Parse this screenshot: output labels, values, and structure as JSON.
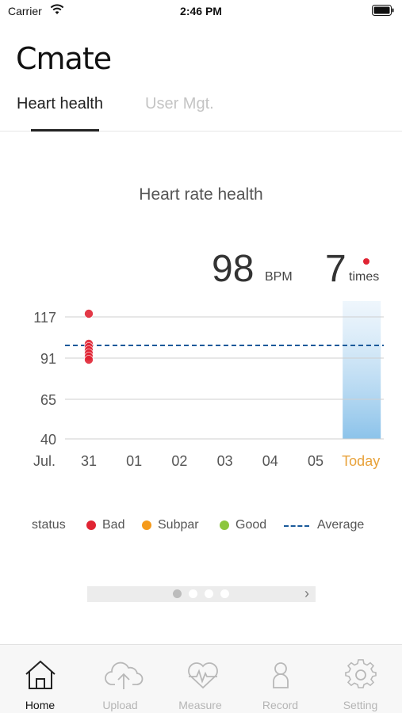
{
  "status_bar": {
    "carrier": "Carrier",
    "time": "2:46 PM"
  },
  "app": {
    "logo": "Cmate"
  },
  "tabs": [
    {
      "label": "Heart health",
      "active": true
    },
    {
      "label": "User Mgt.",
      "active": false
    }
  ],
  "chart": {
    "title": "Heart rate health",
    "bpm_value": "98",
    "bpm_unit": "BPM",
    "count_value": "7",
    "count_unit": "times"
  },
  "legend": {
    "status_label": "status",
    "bad": "Bad",
    "subpar": "Subpar",
    "good": "Good",
    "average": "Average",
    "colors": {
      "bad": "#e02433",
      "subpar": "#f59a1b",
      "good": "#8cc63e",
      "average": "#1a5a9a"
    }
  },
  "chart_data": {
    "type": "scatter",
    "title": "Heart rate health",
    "x_label_prefix": "Jul.",
    "categories": [
      "31",
      "01",
      "02",
      "03",
      "04",
      "05",
      "Today"
    ],
    "highlight_category": "Today",
    "highlight_color": "#e8a23a",
    "y_ticks": [
      40,
      65,
      91,
      117
    ],
    "ylim": [
      40,
      117
    ],
    "average": 99,
    "series": [
      {
        "name": "Bad",
        "color": "#e02433",
        "points": [
          {
            "x": "31",
            "y": 119
          },
          {
            "x": "31",
            "y": 100
          },
          {
            "x": "31",
            "y": 98
          },
          {
            "x": "31",
            "y": 96
          },
          {
            "x": "31",
            "y": 94
          },
          {
            "x": "31",
            "y": 92
          },
          {
            "x": "31",
            "y": 90
          }
        ]
      }
    ]
  },
  "pager": {
    "pages": 4,
    "active_index": 0
  },
  "tabbar": [
    {
      "label": "Home",
      "icon": "home-icon",
      "active": true
    },
    {
      "label": "Upload",
      "icon": "cloud-upload-icon",
      "active": false
    },
    {
      "label": "Measure",
      "icon": "heart-pulse-icon",
      "active": false
    },
    {
      "label": "Record",
      "icon": "person-icon",
      "active": false
    },
    {
      "label": "Setting",
      "icon": "gear-icon",
      "active": false
    }
  ]
}
